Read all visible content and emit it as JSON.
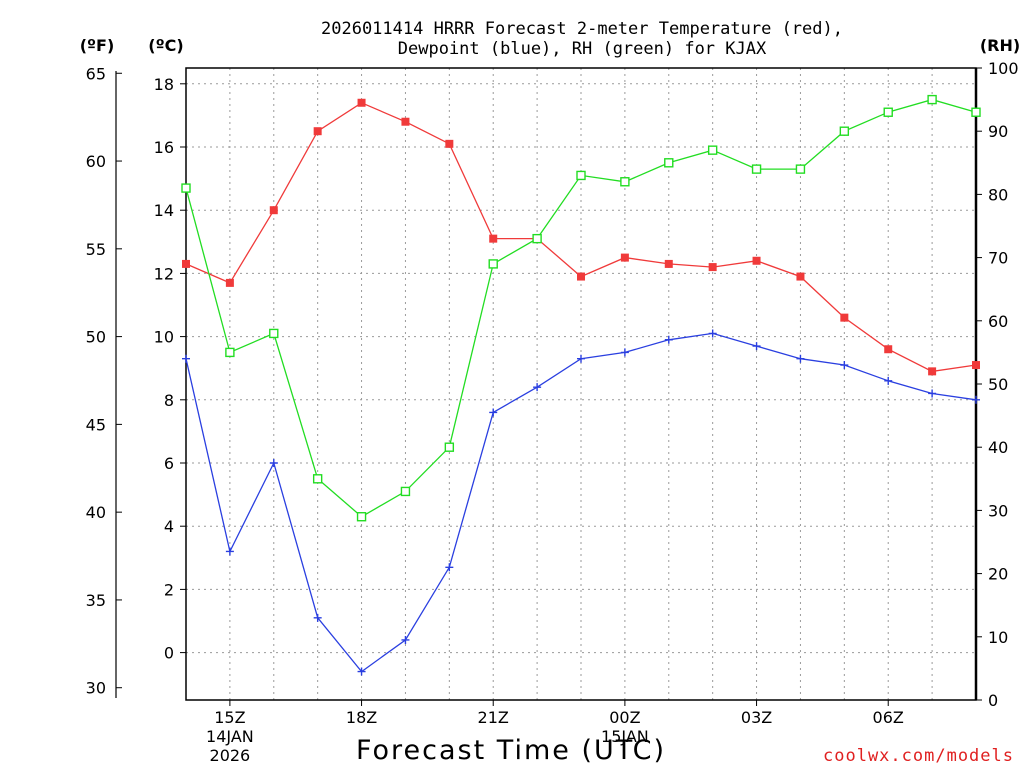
{
  "chart_data": {
    "type": "line",
    "title_line1": "2026011414 HRRR Forecast 2-meter Temperature (red),",
    "title_line2": "Dewpoint (blue), RH (green) for KJAX",
    "xlabel": "Forecast Time (UTC)",
    "watermark": "coolwx.com/models",
    "unit_labels": {
      "fahrenheit": "(ºF)",
      "celsius": "(ºC)",
      "rh": "(RH)"
    },
    "x_hours": [
      14,
      15,
      16,
      17,
      18,
      19,
      20,
      21,
      22,
      23,
      24,
      25,
      26,
      27,
      28,
      29,
      30,
      31,
      32
    ],
    "x_ticks": [
      {
        "hour": 15,
        "label": "15Z",
        "date1": "14JAN",
        "date2": "2026"
      },
      {
        "hour": 18,
        "label": "18Z",
        "date1": "",
        "date2": ""
      },
      {
        "hour": 21,
        "label": "21Z",
        "date1": "",
        "date2": ""
      },
      {
        "hour": 24,
        "label": "00Z",
        "date1": "15JAN",
        "date2": ""
      },
      {
        "hour": 27,
        "label": "03Z",
        "date1": "",
        "date2": ""
      },
      {
        "hour": 30,
        "label": "06Z",
        "date1": "",
        "date2": ""
      }
    ],
    "celsius_axis": {
      "range": [
        -1.5,
        18.5
      ],
      "ticks": [
        0,
        2,
        4,
        6,
        8,
        10,
        12,
        14,
        16,
        18
      ]
    },
    "fahrenheit_axis": {
      "ticks": [
        30,
        35,
        40,
        45,
        50,
        55,
        60,
        65
      ]
    },
    "rh_axis": {
      "range": [
        0,
        100
      ],
      "ticks": [
        0,
        10,
        20,
        30,
        40,
        50,
        60,
        70,
        80,
        90,
        100
      ]
    },
    "series": [
      {
        "name": "Temperature",
        "axis": "celsius",
        "color": "#f03a3a",
        "marker": "filled-square",
        "values": [
          12.3,
          11.7,
          14.0,
          16.5,
          17.4,
          16.8,
          16.1,
          13.1,
          13.1,
          11.9,
          12.5,
          12.3,
          12.2,
          12.4,
          11.9,
          10.6,
          9.6,
          8.9,
          9.1
        ]
      },
      {
        "name": "Dewpoint",
        "axis": "celsius",
        "color": "#2a3fe0",
        "marker": "plus",
        "values": [
          9.3,
          3.2,
          6.0,
          1.1,
          -0.6,
          0.4,
          2.7,
          7.6,
          8.4,
          9.3,
          9.5,
          9.9,
          10.1,
          9.7,
          9.3,
          9.1,
          8.6,
          8.2,
          8.0
        ]
      },
      {
        "name": "RH",
        "axis": "rh",
        "color": "#22dd22",
        "marker": "open-square",
        "values": [
          81,
          55,
          58,
          35,
          29,
          33,
          40,
          69,
          73,
          83,
          82,
          85,
          87,
          84,
          84,
          90,
          93,
          95,
          93
        ]
      }
    ]
  }
}
